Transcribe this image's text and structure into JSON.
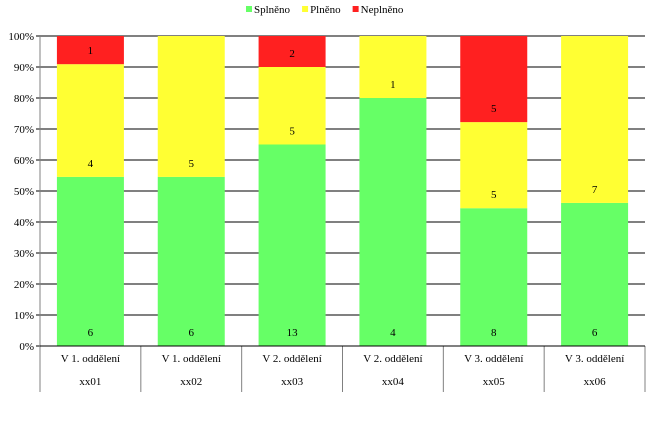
{
  "chart_data": {
    "type": "bar",
    "stacked": "percent",
    "categories": [
      [
        "V 1. oddělení",
        "xx01"
      ],
      [
        "V 1. oddělení",
        "xx02"
      ],
      [
        "V 2. oddělení",
        "xx03"
      ],
      [
        "V 2. oddělení",
        "xx04"
      ],
      [
        "V 3. oddělení",
        "xx05"
      ],
      [
        "V 3. oddělení",
        "xx06"
      ]
    ],
    "series": [
      {
        "name": "Splněno",
        "color": "#66ff66",
        "values": [
          6,
          6,
          13,
          4,
          8,
          6
        ]
      },
      {
        "name": "Plněno",
        "color": "#ffff33",
        "values": [
          4,
          5,
          5,
          1,
          5,
          7
        ]
      },
      {
        "name": "Neplněno",
        "color": "#ff2020",
        "values": [
          1,
          0,
          2,
          0,
          5,
          0
        ]
      }
    ],
    "yticks": [
      "0%",
      "10%",
      "20%",
      "30%",
      "40%",
      "50%",
      "60%",
      "70%",
      "80%",
      "90%",
      "100%"
    ],
    "ylim": [
      0,
      100
    ],
    "grid": true,
    "legend": "top"
  }
}
